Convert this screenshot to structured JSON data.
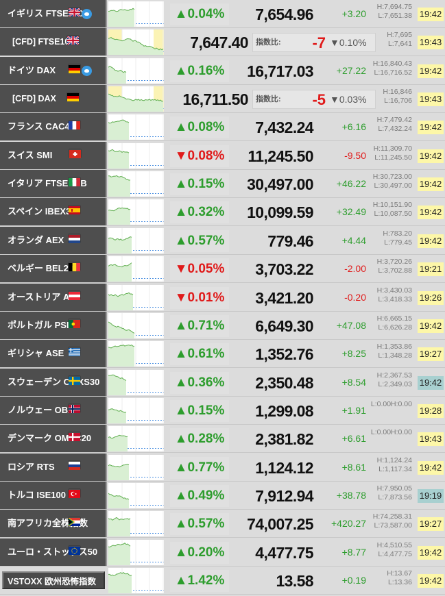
{
  "rows": [
    {
      "type": "index",
      "name": "イギリス FTSE100",
      "flag": "UK",
      "twitter": true,
      "pct": "0.04%",
      "dir": "up",
      "price": "7,654.96",
      "change": "+3.20",
      "high": "H:7,694.75",
      "low": "L:7,651.38",
      "time": "19:42",
      "time_color": "#fdf7a8"
    },
    {
      "type": "cfd",
      "name": "[CFD] FTSE100",
      "flag": "UK",
      "price": "7,647.40",
      "spread_label": "指数比:",
      "spread": "-7",
      "spread_pct": "▼0.10%",
      "high": "H:7,695",
      "low": "L:7,641",
      "time": "19:43",
      "time_color": "#fdf7a8"
    },
    {
      "type": "index",
      "name": "ドイツ DAX",
      "flag": "DE",
      "twitter": true,
      "pct": "0.16%",
      "dir": "up",
      "price": "16,717.03",
      "change": "+27.22",
      "high": "H:16,840.43",
      "low": "L:16,716.52",
      "time": "19:42",
      "time_color": "#fdf7a8"
    },
    {
      "type": "cfd",
      "name": "[CFD] DAX",
      "flag": "DE",
      "price": "16,711.50",
      "spread_label": "指数比:",
      "spread": "-5",
      "spread_pct": "▼0.03%",
      "high": "H:16,846",
      "low": "L:16,706",
      "time": "19:43",
      "time_color": "#fdf7a8"
    },
    {
      "type": "index",
      "name": "フランス CAC40",
      "flag": "FR",
      "pct": "0.08%",
      "dir": "up",
      "price": "7,432.24",
      "change": "+6.16",
      "high": "H:7,479.42",
      "low": "L:7,432.24",
      "time": "19:42",
      "time_color": "#fdf7a8"
    },
    {
      "type": "index",
      "name": "スイス SMI",
      "flag": "CH",
      "pct": "0.08%",
      "dir": "down",
      "price": "11,245.50",
      "change": "-9.50",
      "high": "H:11,309.70",
      "low": "L:11,245.50",
      "time": "19:42",
      "time_color": "#fdf7a8"
    },
    {
      "type": "index",
      "name": "イタリア FTSE MIB",
      "flag": "IT",
      "pct": "0.15%",
      "dir": "up",
      "price": "30,497.00",
      "change": "+46.22",
      "high": "H:30,723.00",
      "low": "L:30,497.00",
      "time": "19:42",
      "time_color": "#fdf7a8"
    },
    {
      "type": "index",
      "name": "スペイン IBEX35",
      "flag": "ES",
      "pct": "0.32%",
      "dir": "up",
      "price": "10,099.59",
      "change": "+32.49",
      "high": "H:10,151.90",
      "low": "L:10,087.50",
      "time": "19:42",
      "time_color": "#fdf7a8"
    },
    {
      "type": "index",
      "name": "オランダ AEX",
      "flag": "NL",
      "pct": "0.57%",
      "dir": "up",
      "price": "779.46",
      "change": "+4.44",
      "high": "H:783.20",
      "low": "L:779.45",
      "time": "19:42",
      "time_color": "#fdf7a8"
    },
    {
      "type": "index",
      "name": "ベルギー BEL20",
      "flag": "BE",
      "pct": "0.05%",
      "dir": "down",
      "price": "3,703.22",
      "change": "-2.00",
      "high": "H:3,720.26",
      "low": "L:3,702.88",
      "time": "19:21",
      "time_color": "#fdf7a8"
    },
    {
      "type": "index",
      "name": "オーストリア ATX",
      "flag": "AT",
      "pct": "0.01%",
      "dir": "down",
      "price": "3,421.20",
      "change": "-0.20",
      "high": "H:3,430.03",
      "low": "L:3,418.33",
      "time": "19:26",
      "time_color": "#fdf7a8"
    },
    {
      "type": "index",
      "name": "ポルトガル PSI20",
      "flag": "PT",
      "pct": "0.71%",
      "dir": "up",
      "price": "6,649.30",
      "change": "+47.08",
      "high": "H:6,665.15",
      "low": "L:6,626.28",
      "time": "19:42",
      "time_color": "#fdf7a8"
    },
    {
      "type": "index",
      "name": "ギリシャ ASE",
      "flag": "GR",
      "pct": "0.61%",
      "dir": "up",
      "price": "1,352.76",
      "change": "+8.25",
      "high": "H:1,353.86",
      "low": "L:1,348.28",
      "time": "19:27",
      "time_color": "#fdf7a8"
    },
    {
      "type": "index",
      "name": "スウェーデン OMXS30",
      "flag": "SE",
      "pct": "0.36%",
      "dir": "up",
      "price": "2,350.48",
      "change": "+8.54",
      "high": "H:2,367.53",
      "low": "L:2,349.03",
      "time": "19:42",
      "time_color": "#a8d0d0"
    },
    {
      "type": "index",
      "name": "ノルウェー OBX",
      "flag": "NO",
      "pct": "0.15%",
      "dir": "up",
      "price": "1,299.08",
      "change": "+1.91",
      "high": "L:0.00H:0.00",
      "low": "",
      "time": "19:28",
      "time_color": "#fdf7a8"
    },
    {
      "type": "index",
      "name": "デンマーク OMXC20",
      "flag": "DK",
      "pct": "0.28%",
      "dir": "up",
      "price": "2,381.82",
      "change": "+6.61",
      "high": "L:0.00H:0.00",
      "low": "",
      "time": "19:43",
      "time_color": "#fdf7a8"
    },
    {
      "type": "index",
      "name": "ロシア RTS",
      "flag": "RU",
      "pct": "0.77%",
      "dir": "up",
      "price": "1,124.12",
      "change": "+8.61",
      "high": "H:1,124.24",
      "low": "L:1,117.34",
      "time": "19:42",
      "time_color": "#fdf7a8"
    },
    {
      "type": "index",
      "name": "トルコ ISE100",
      "flag": "TR",
      "pct": "0.49%",
      "dir": "up",
      "price": "7,912.94",
      "change": "+38.78",
      "high": "H:7,950.05",
      "low": "L:7,873.56",
      "time": "19:19",
      "time_color": "#a8d0d0"
    },
    {
      "type": "index",
      "name": "南アフリカ全株指数",
      "flag": "ZA",
      "pct": "0.57%",
      "dir": "up",
      "price": "74,007.25",
      "change": "+420.27",
      "high": "H:74,258.31",
      "low": "L:73,587.00",
      "time": "19:27",
      "time_color": "#fdf7a8"
    },
    {
      "type": "index",
      "name": "ユーロ・ストックス50",
      "flag": "EU",
      "pct": "0.20%",
      "dir": "up",
      "price": "4,477.75",
      "change": "+8.77",
      "high": "H:4,510.55",
      "low": "L:4,477.75",
      "time": "19:42",
      "time_color": "#fdf7a8"
    },
    {
      "type": "index",
      "name": "VSTOXX 欧州恐怖指数",
      "flag": "",
      "vstoxx": true,
      "pct": "1.42%",
      "dir": "up",
      "price": "13.58",
      "change": "+0.19",
      "high": "H:13.67",
      "low": "L:13.36",
      "time": "19:42",
      "time_color": "#fdf7a8"
    }
  ]
}
